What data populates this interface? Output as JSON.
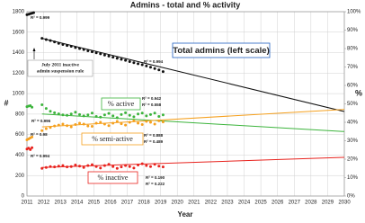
{
  "chart_data": {
    "type": "scatter",
    "title": "Admins - total and % activity",
    "x_label": "Year",
    "y_label": "#",
    "y2_label": "%",
    "xlim": [
      2011,
      2030
    ],
    "xticks": [
      2011,
      2012,
      2013,
      2014,
      2015,
      2016,
      2017,
      2018,
      2019,
      2020,
      2021,
      2022,
      2023,
      2024,
      2025,
      2026,
      2027,
      2028,
      2029,
      2030
    ],
    "ylim": [
      0,
      1800
    ],
    "yticks": [
      0,
      200,
      400,
      600,
      800,
      1000,
      1200,
      1400,
      1600,
      1800
    ],
    "y2lim": [
      0,
      100
    ],
    "y2ticks": [
      {
        "value": 0,
        "label": "0%"
      },
      {
        "value": 10,
        "label": "10%"
      },
      {
        "value": 20,
        "label": "20%"
      },
      {
        "value": 30,
        "label": "30%"
      },
      {
        "value": 40,
        "label": "40%"
      },
      {
        "value": 50,
        "label": "50%"
      },
      {
        "value": 60,
        "label": "60%"
      },
      {
        "value": 70,
        "label": "70%"
      },
      {
        "value": 80,
        "label": "80%"
      },
      {
        "value": 90,
        "label": "90%"
      },
      {
        "value": 100,
        "label": "100%"
      }
    ],
    "grid": true,
    "series": [
      {
        "name": "Total admins (left scale)",
        "color": "#111111",
        "x": [
          2011.0,
          2011.1,
          2011.2,
          2011.3,
          2011.4,
          2011.9,
          2012.15,
          2012.4,
          2012.65,
          2012.9,
          2013.15,
          2013.4,
          2013.65,
          2013.9,
          2014.15,
          2014.4,
          2014.65,
          2014.9,
          2015.15,
          2015.4,
          2015.65,
          2015.9,
          2016.15,
          2016.4,
          2016.65,
          2016.9,
          2017.15,
          2017.4,
          2017.65,
          2017.9,
          2018.15,
          2018.4,
          2018.65,
          2018.9,
          2019.15
        ],
        "values": [
          1770,
          1775,
          1780,
          1785,
          1790,
          1540,
          1528,
          1518,
          1505,
          1490,
          1480,
          1470,
          1462,
          1450,
          1440,
          1430,
          1418,
          1408,
          1398,
          1388,
          1376,
          1366,
          1356,
          1345,
          1335,
          1325,
          1313,
          1302,
          1292,
          1282,
          1270,
          1258,
          1245,
          1232,
          1215
        ],
        "trend_x": [
          2011.9,
          2030
        ],
        "trend_values": [
          1540,
          825
        ]
      },
      {
        "name": "% active",
        "color": "#3cb43c",
        "axis": "y2",
        "x": [
          2011.0,
          2011.1,
          2011.2,
          2011.3,
          2011.9,
          2012.15,
          2012.4,
          2012.65,
          2012.9,
          2013.15,
          2013.4,
          2013.65,
          2013.9,
          2014.15,
          2014.4,
          2014.65,
          2014.9,
          2015.15,
          2015.4,
          2015.65,
          2015.9,
          2016.15,
          2016.4,
          2016.65,
          2016.9,
          2017.15,
          2017.4,
          2017.65,
          2017.9,
          2018.15,
          2018.4,
          2018.65,
          2018.9,
          2019.15
        ],
        "values": [
          48.5,
          48.8,
          49.0,
          48.2,
          49.5,
          47.5,
          46.0,
          45.2,
          44.6,
          44.0,
          43.8,
          44.5,
          45.5,
          44.2,
          43.5,
          44.0,
          45.0,
          43.2,
          42.8,
          44.0,
          44.8,
          43.5,
          42.5,
          44.2,
          45.2,
          43.8,
          43.0,
          44.5,
          45.0,
          43.5,
          44.2,
          45.0,
          43.2,
          44.0
        ],
        "trend_x": [
          2011.9,
          2030
        ],
        "trend_values": [
          44.5,
          35
        ]
      },
      {
        "name": "% semi-active",
        "color": "#f5a01e",
        "axis": "y2",
        "x": [
          2011.0,
          2011.1,
          2011.2,
          2011.3,
          2011.9,
          2012.15,
          2012.4,
          2012.65,
          2012.9,
          2013.15,
          2013.4,
          2013.65,
          2013.9,
          2014.15,
          2014.4,
          2014.65,
          2014.9,
          2015.15,
          2015.4,
          2015.65,
          2015.9,
          2016.15,
          2016.4,
          2016.65,
          2016.9,
          2017.15,
          2017.4,
          2017.65,
          2017.9,
          2018.15,
          2018.4,
          2018.65,
          2018.9,
          2019.15
        ],
        "values": [
          30.5,
          31.0,
          31.5,
          32.0,
          35.5,
          36.5,
          37.2,
          38.0,
          38.5,
          39.0,
          38.2,
          37.5,
          38.8,
          39.5,
          39.0,
          38.0,
          37.8,
          39.5,
          40.0,
          39.0,
          38.2,
          39.5,
          40.5,
          39.2,
          38.5,
          40.0,
          40.8,
          39.5,
          38.8,
          40.5,
          40.0,
          39.0,
          40.8,
          40.2
        ],
        "trend_x": [
          2011.9,
          2030
        ],
        "trend_values": [
          37.5,
          47
        ]
      },
      {
        "name": "% inactive",
        "color": "#e8231e",
        "axis": "y2",
        "x": [
          2011.0,
          2011.1,
          2011.2,
          2011.3,
          2011.9,
          2012.15,
          2012.4,
          2012.65,
          2012.9,
          2013.15,
          2013.4,
          2013.65,
          2013.9,
          2014.15,
          2014.4,
          2014.65,
          2014.9,
          2015.15,
          2015.4,
          2015.65,
          2015.9,
          2016.15,
          2016.4,
          2016.65,
          2016.9,
          2017.15,
          2017.4,
          2017.65,
          2017.9,
          2018.15,
          2018.4,
          2018.65,
          2018.9,
          2019.15
        ],
        "values": [
          25.5,
          26.0,
          25.2,
          26.2,
          15.0,
          15.5,
          16.0,
          15.8,
          16.2,
          16.5,
          15.8,
          16.0,
          16.8,
          16.2,
          15.5,
          16.5,
          17.0,
          16.0,
          15.2,
          16.5,
          17.2,
          16.0,
          15.0,
          15.8,
          16.5,
          16.0,
          15.2,
          16.8,
          17.5,
          16.5,
          16.0,
          17.2,
          16.2,
          15.8
        ],
        "trend_x": [
          2011.9,
          2030
        ],
        "trend_values": [
          15.5,
          21
        ]
      }
    ],
    "annotations": [
      "R² = 0.999",
      "R² = 0.994",
      "July 2011 inactive",
      "admin suspension rule",
      "R² = 0.996",
      "R² = 0.942",
      "R² = 0.558",
      "R² = 0.98",
      "R² = 0.888",
      "R² = 0.489",
      "R² = 0.994",
      "R² = 0.190",
      "R² = 0.222"
    ]
  }
}
